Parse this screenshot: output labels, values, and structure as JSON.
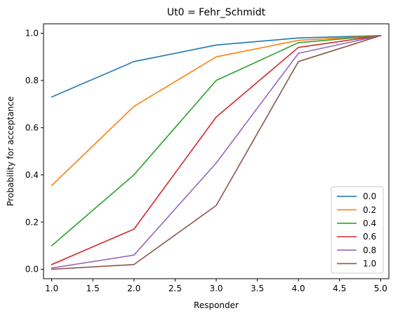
{
  "chart_data": {
    "type": "line",
    "title": "Ut0 = Fehr_Schmidt",
    "xlabel": "Responder",
    "ylabel": "Probability for acceptance",
    "xlim": [
      0.9,
      5.1
    ],
    "ylim": [
      -0.04,
      1.04
    ],
    "x": [
      1.0,
      2.0,
      3.0,
      4.0,
      5.0
    ],
    "xticks": [
      1.0,
      1.5,
      2.0,
      2.5,
      3.0,
      3.5,
      4.0,
      4.5,
      5.0
    ],
    "xtick_labels": [
      "1.0",
      "1.5",
      "2.0",
      "2.5",
      "3.0",
      "3.5",
      "4.0",
      "4.5",
      "5.0"
    ],
    "yticks": [
      0.0,
      0.2,
      0.4,
      0.6,
      0.8,
      1.0
    ],
    "ytick_labels": [
      "0.0",
      "0.2",
      "0.4",
      "0.6",
      "0.8",
      "1.0"
    ],
    "grid": false,
    "legend_position": "lower-right",
    "series": [
      {
        "name": "0.0",
        "color": "#1f77b4",
        "values": [
          0.73,
          0.88,
          0.95,
          0.98,
          0.99
        ]
      },
      {
        "name": "0.2",
        "color": "#ff7f0e",
        "values": [
          0.355,
          0.69,
          0.9,
          0.97,
          0.99
        ]
      },
      {
        "name": "0.4",
        "color": "#2ca02c",
        "values": [
          0.1,
          0.4,
          0.8,
          0.96,
          0.99
        ]
      },
      {
        "name": "0.6",
        "color": "#d62728",
        "values": [
          0.02,
          0.17,
          0.645,
          0.94,
          0.99
        ]
      },
      {
        "name": "0.8",
        "color": "#9467bd",
        "values": [
          0.005,
          0.06,
          0.45,
          0.915,
          0.99
        ]
      },
      {
        "name": "1.0",
        "color": "#8c564b",
        "values": [
          0.0,
          0.02,
          0.27,
          0.88,
          0.99
        ]
      }
    ]
  }
}
